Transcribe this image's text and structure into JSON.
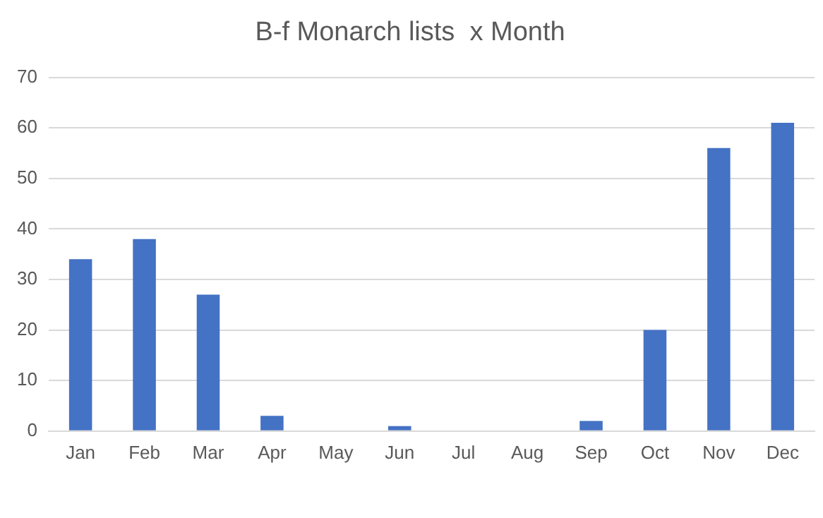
{
  "chart_data": {
    "type": "bar",
    "title": "B-f Monarch lists  x Month",
    "categories": [
      "Jan",
      "Feb",
      "Mar",
      "Apr",
      "May",
      "Jun",
      "Jul",
      "Aug",
      "Sep",
      "Oct",
      "Nov",
      "Dec"
    ],
    "values": [
      34,
      38,
      27,
      3,
      0,
      1,
      0,
      0,
      2,
      20,
      56,
      61
    ],
    "color": "#4472c4",
    "ylim": [
      0,
      70
    ],
    "yticks": [
      0,
      10,
      20,
      30,
      40,
      50,
      60,
      70
    ],
    "grid": "y"
  }
}
